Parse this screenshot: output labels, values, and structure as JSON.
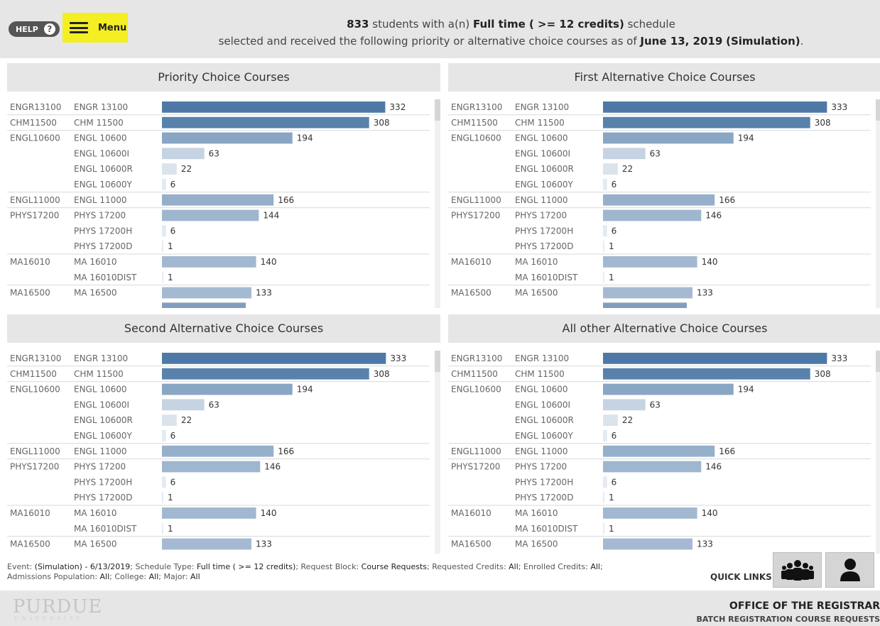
{
  "header": {
    "help_label": "HELP",
    "help_icon": "question-circle-icon",
    "menu_label": "Menu",
    "menu_icon": "hamburger-icon",
    "line1_count": "833",
    "line1_pre": " students with a(n) ",
    "line1_schedule": "Full time ( >= 12 credits)",
    "line1_post": " schedule",
    "line2_pre": "selected and received the following priority or alternative choice courses as of ",
    "line2_date": "June 13, 2019",
    "line2_event": "(Simulation)",
    "line2_post": "."
  },
  "chart_data": [
    {
      "type": "bar",
      "title": "Priority Choice Courses",
      "categories": [
        [
          "ENGR13100",
          "ENGR 13100"
        ],
        [
          "CHM11500",
          "CHM 11500"
        ],
        [
          "ENGL10600",
          "ENGL 10600"
        ],
        [
          "",
          "ENGL 10600I"
        ],
        [
          "",
          "ENGL 10600R"
        ],
        [
          "",
          "ENGL 10600Y"
        ],
        [
          "ENGL11000",
          "ENGL 11000"
        ],
        [
          "PHYS17200",
          "PHYS 17200"
        ],
        [
          "",
          "PHYS 17200H"
        ],
        [
          "",
          "PHYS 17200D"
        ],
        [
          "MA16010",
          "MA 16010"
        ],
        [
          "",
          "MA 16010DIST"
        ],
        [
          "MA16500",
          "MA 16500"
        ]
      ],
      "values": [
        332,
        308,
        194,
        63,
        22,
        6,
        166,
        144,
        6,
        1,
        140,
        1,
        133
      ],
      "xlim": [
        0,
        340
      ]
    },
    {
      "type": "bar",
      "title": "First Alternative Choice Courses",
      "categories": [
        [
          "ENGR13100",
          "ENGR 13100"
        ],
        [
          "CHM11500",
          "CHM 11500"
        ],
        [
          "ENGL10600",
          "ENGL 10600"
        ],
        [
          "",
          "ENGL 10600I"
        ],
        [
          "",
          "ENGL 10600R"
        ],
        [
          "",
          "ENGL 10600Y"
        ],
        [
          "ENGL11000",
          "ENGL 11000"
        ],
        [
          "PHYS17200",
          "PHYS 17200"
        ],
        [
          "",
          "PHYS 17200H"
        ],
        [
          "",
          "PHYS 17200D"
        ],
        [
          "MA16010",
          "MA 16010"
        ],
        [
          "",
          "MA 16010DIST"
        ],
        [
          "MA16500",
          "MA 16500"
        ]
      ],
      "values": [
        333,
        308,
        194,
        63,
        22,
        6,
        166,
        146,
        6,
        1,
        140,
        1,
        133
      ],
      "xlim": [
        0,
        340
      ]
    },
    {
      "type": "bar",
      "title": "Second Alternative Choice Courses",
      "categories": [
        [
          "ENGR13100",
          "ENGR 13100"
        ],
        [
          "CHM11500",
          "CHM 11500"
        ],
        [
          "ENGL10600",
          "ENGL 10600"
        ],
        [
          "",
          "ENGL 10600I"
        ],
        [
          "",
          "ENGL 10600R"
        ],
        [
          "",
          "ENGL 10600Y"
        ],
        [
          "ENGL11000",
          "ENGL 11000"
        ],
        [
          "PHYS17200",
          "PHYS 17200"
        ],
        [
          "",
          "PHYS 17200H"
        ],
        [
          "",
          "PHYS 17200D"
        ],
        [
          "MA16010",
          "MA 16010"
        ],
        [
          "",
          "MA 16010DIST"
        ],
        [
          "MA16500",
          "MA 16500"
        ]
      ],
      "values": [
        333,
        308,
        194,
        63,
        22,
        6,
        166,
        146,
        6,
        1,
        140,
        1,
        133
      ],
      "xlim": [
        0,
        340
      ]
    },
    {
      "type": "bar",
      "title": "All other Alternative Choice Courses",
      "categories": [
        [
          "ENGR13100",
          "ENGR 13100"
        ],
        [
          "CHM11500",
          "CHM 11500"
        ],
        [
          "ENGL10600",
          "ENGL 10600"
        ],
        [
          "",
          "ENGL 10600I"
        ],
        [
          "",
          "ENGL 10600R"
        ],
        [
          "",
          "ENGL 10600Y"
        ],
        [
          "ENGL11000",
          "ENGL 11000"
        ],
        [
          "PHYS17200",
          "PHYS 17200"
        ],
        [
          "",
          "PHYS 17200H"
        ],
        [
          "",
          "PHYS 17200D"
        ],
        [
          "MA16010",
          "MA 16010"
        ],
        [
          "",
          "MA 16010DIST"
        ],
        [
          "MA16500",
          "MA 16500"
        ]
      ],
      "values": [
        333,
        308,
        194,
        63,
        22,
        6,
        166,
        146,
        6,
        1,
        140,
        1,
        133
      ],
      "xlim": [
        0,
        340
      ]
    }
  ],
  "colors": {
    "bar_max": "#4e79a7",
    "bar_min": "#e8edf3",
    "header_bg": "#e6e6e6",
    "highlight": "#f3ef23"
  },
  "footer": {
    "event_label": "Event: ",
    "event_value": "(Simulation) - 6/13/2019",
    "schedule_label": "; Schedule Type: ",
    "schedule_value": "Full time ( >= 12 credits)",
    "block_label": "; Request Block: ",
    "block_value": "Course Requests",
    "req_label": "; Requested Credits: ",
    "req_value": "All",
    "enr_label": "; Enrolled Credits: ",
    "enr_value": "All",
    "sep1": ";",
    "adm_label": "Admissions Population: ",
    "adm_value": "All",
    "college_label": "; College: ",
    "college_value": "All",
    "major_label": "; Major: ",
    "major_value": "All",
    "quick_links": "QUICK LINKS",
    "ql_icon1": "group-people-icon",
    "ql_icon2": "person-icon",
    "purdue": "PURDUE",
    "purdue_sub": "UNIVERSITY",
    "registrar_title": "OFFICE OF THE REGISTRAR",
    "registrar_sub": "BATCH REGISTRATION COURSE REQUESTS"
  }
}
